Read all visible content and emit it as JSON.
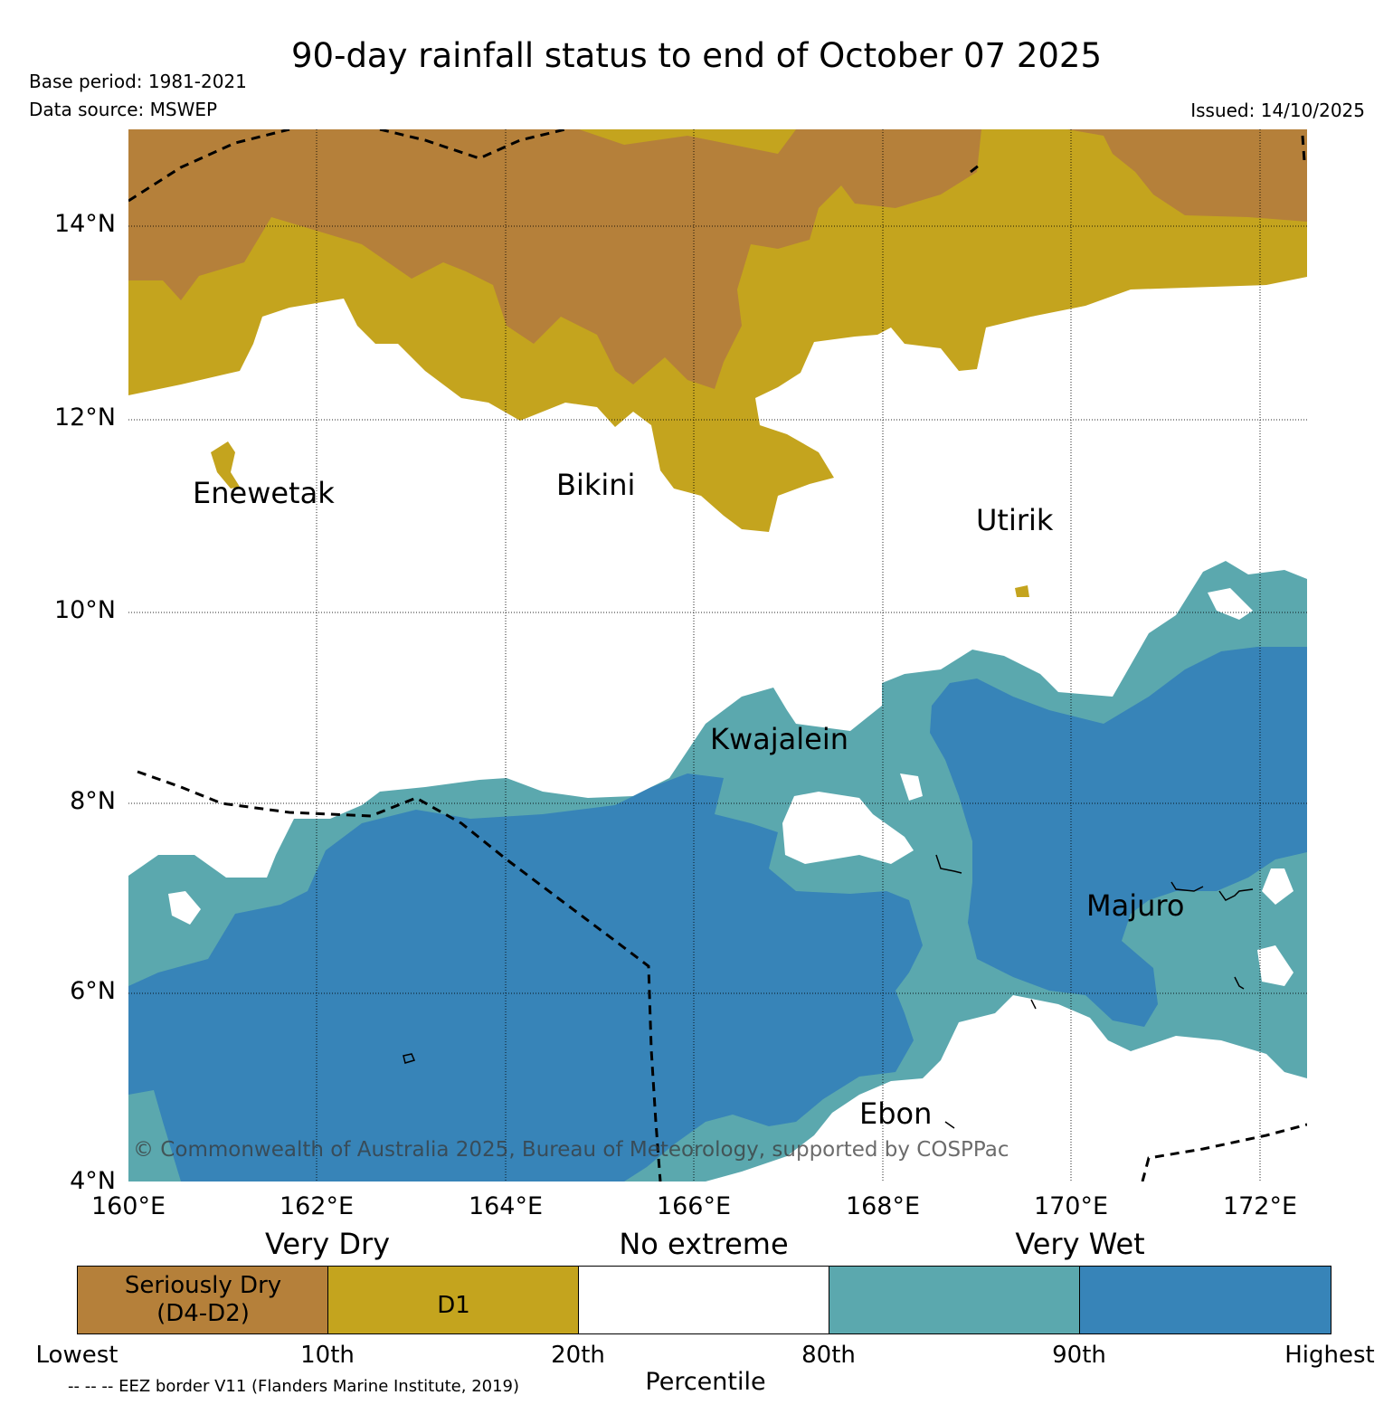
{
  "header": {
    "title": "90-day rainfall status to end of October 07 2025",
    "base_period": "Base period: 1981-2021",
    "data_source": "Data source: MSWEP",
    "issued": "Issued: 14/10/2025"
  },
  "map": {
    "lat_labels": [
      "14°N",
      "12°N",
      "10°N",
      "8°N",
      "6°N",
      "4°N"
    ],
    "lon_labels": [
      "160°E",
      "162°E",
      "164°E",
      "166°E",
      "168°E",
      "170°E",
      "172°E"
    ],
    "places": {
      "enewetak": "Enewetak",
      "bikini": "Bikini",
      "utirik": "Utirik",
      "kwajalein": "Kwajalein",
      "majuro": "Majuro",
      "ebon": "Ebon"
    },
    "copyright": "© Commonwealth of Australia 2025, Bureau of Meteorology, supported by COSPPac",
    "colors": {
      "seriously_dry": "#b5803a",
      "d1": "#c4a41e",
      "no_extreme": "#ffffff",
      "wet": "#5ba8ae",
      "very_wet": "#3784b8"
    }
  },
  "legend": {
    "headings": {
      "very_dry": "Very Dry",
      "no_extreme": "No extreme",
      "very_wet": "Very Wet"
    },
    "boxes": {
      "seriously_dry_line1": "Seriously Dry",
      "seriously_dry_line2": "(D4-D2)",
      "d1": "D1"
    },
    "ticks": [
      "Lowest",
      "10th",
      "20th",
      "80th",
      "90th",
      "Highest"
    ],
    "axis_label": "Percentile",
    "eez_note": "-- -- -- EEZ border V11 (Flanders Marine Institute, 2019)"
  }
}
